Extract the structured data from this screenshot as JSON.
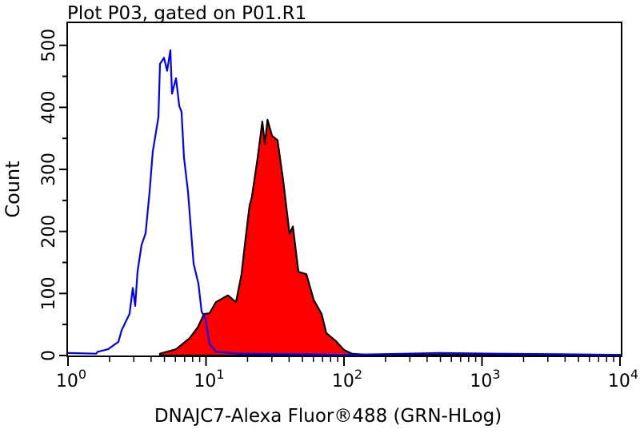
{
  "chart_data": {
    "type": "histogram",
    "title": "Plot P03, gated on P01.R1",
    "xlabel": "DNAJC7-Alexa Fluor®488 (GRN-HLog)",
    "ylabel": "Count",
    "xscale": "log",
    "xlim": [
      1,
      10000
    ],
    "ylim": [
      0,
      537
    ],
    "x_ticks": [
      {
        "base": "10",
        "exp": "0",
        "value": 1
      },
      {
        "base": "10",
        "exp": "1",
        "value": 10
      },
      {
        "base": "10",
        "exp": "2",
        "value": 100
      },
      {
        "base": "10",
        "exp": "3",
        "value": 1000
      },
      {
        "base": "10",
        "exp": "4",
        "value": 10000
      }
    ],
    "y_ticks": [
      "0",
      "100",
      "200",
      "300",
      "400",
      "500"
    ],
    "grid": false,
    "series": [
      {
        "style": "outline",
        "color": "#0000ff",
        "points": [
          [
            1.0,
            4
          ],
          [
            1.6,
            3
          ],
          [
            1.64,
            6
          ],
          [
            1.95,
            10
          ],
          [
            2.32,
            22
          ],
          [
            2.45,
            41
          ],
          [
            2.79,
            67
          ],
          [
            2.95,
            109
          ],
          [
            3.07,
            80
          ],
          [
            3.19,
            135
          ],
          [
            3.41,
            178
          ],
          [
            3.65,
            197
          ],
          [
            3.9,
            264
          ],
          [
            4.11,
            328
          ],
          [
            4.52,
            384
          ],
          [
            4.64,
            470
          ],
          [
            4.96,
            480
          ],
          [
            5.23,
            459
          ],
          [
            5.52,
            492
          ],
          [
            5.67,
            422
          ],
          [
            6.06,
            447
          ],
          [
            6.4,
            402
          ],
          [
            6.65,
            393
          ],
          [
            6.93,
            319
          ],
          [
            7.41,
            264
          ],
          [
            8.13,
            148
          ],
          [
            8.81,
            116
          ],
          [
            9.29,
            71
          ],
          [
            9.93,
            58
          ],
          [
            10.6,
            19
          ],
          [
            11.8,
            6
          ],
          [
            17.6,
            3
          ],
          [
            100,
            1
          ],
          [
            497,
            4
          ],
          [
            1260,
            3
          ],
          [
            3670,
            2
          ],
          [
            10000,
            1
          ]
        ]
      },
      {
        "style": "filled",
        "color": "#ff0000",
        "outline": "#000000",
        "points": [
          [
            4.64,
            3
          ],
          [
            6.06,
            10
          ],
          [
            7.61,
            28
          ],
          [
            8.69,
            45
          ],
          [
            9.68,
            67
          ],
          [
            10.6,
            68
          ],
          [
            11.8,
            86
          ],
          [
            14.4,
            97
          ],
          [
            16.5,
            86
          ],
          [
            18.1,
            131
          ],
          [
            19.4,
            190
          ],
          [
            20.7,
            242
          ],
          [
            21.5,
            255
          ],
          [
            23.7,
            319
          ],
          [
            25.6,
            377
          ],
          [
            26.7,
            341
          ],
          [
            27.9,
            380
          ],
          [
            30.1,
            354
          ],
          [
            33.0,
            347
          ],
          [
            36.3,
            281
          ],
          [
            40.3,
            196
          ],
          [
            42.6,
            208
          ],
          [
            46.7,
            135
          ],
          [
            53.4,
            131
          ],
          [
            60.2,
            90
          ],
          [
            68.8,
            67
          ],
          [
            74.5,
            36
          ],
          [
            87.5,
            23
          ],
          [
            100,
            9
          ],
          [
            114,
            3
          ],
          [
            149,
            1
          ],
          [
            10000,
            1
          ]
        ]
      }
    ]
  }
}
